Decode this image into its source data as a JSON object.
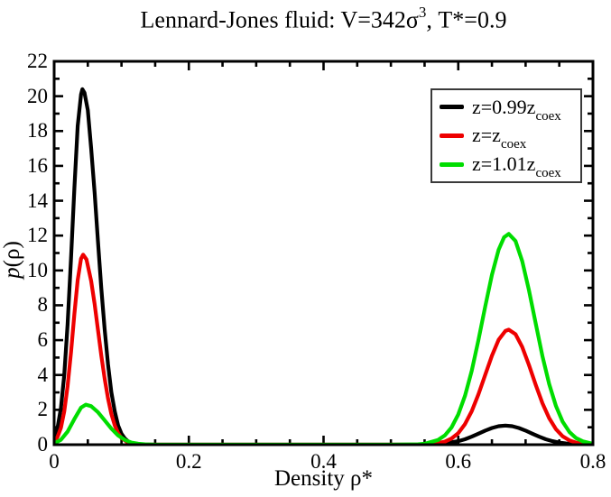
{
  "title": {
    "full": "Lennard-Jones fluid: V=342σ³, T*=0.9",
    "parts": {
      "before": "Lennard-Jones fluid: V=342σ",
      "sup": "3",
      "after": ", T*=0.9"
    }
  },
  "axes": {
    "ylabel_parts": {
      "italic": "p",
      "rest": "(ρ)"
    },
    "xlabel": "Density ρ*"
  },
  "legend": {
    "position": "top-right",
    "entries": [
      {
        "prefix": "z=0.99z",
        "subscript": "coex",
        "full": "z=0.99z_coex",
        "color": "#000000"
      },
      {
        "prefix": "z=z",
        "subscript": "coex",
        "full": "z=z_coex",
        "color": "#ee0000"
      },
      {
        "prefix": "z=1.01z",
        "subscript": "coex",
        "full": "z=1.01z_coex",
        "color": "#00dd00"
      }
    ]
  },
  "chart_data": {
    "type": "line",
    "title": "Lennard-Jones fluid: V=342σ³, T*=0.9",
    "xlabel": "Density ρ*",
    "ylabel": "p(ρ)",
    "xlim": [
      0,
      0.8
    ],
    "ylim": [
      0,
      22
    ],
    "grid": false,
    "legend_position": "top-right",
    "x_major_ticks": [
      0,
      0.2,
      0.4,
      0.6,
      0.8
    ],
    "x_tick_labels": [
      "0",
      "0.2",
      "0.4",
      "0.6",
      "0.8"
    ],
    "x_minor_step": 0.05,
    "y_major_ticks": [
      0,
      2,
      4,
      6,
      8,
      10,
      12,
      14,
      16,
      18,
      20,
      22
    ],
    "y_tick_labels": [
      "0",
      "2",
      "4",
      "6",
      "8",
      "10",
      "12",
      "14",
      "16",
      "18",
      "20",
      "22"
    ],
    "y_minor_step": 1,
    "series": [
      {
        "name": "z=0.99z_coex",
        "color": "#000000",
        "left_peak": {
          "x": 0.042,
          "y": 20.4
        },
        "right_peak": {
          "x": 0.67,
          "y": 1.1
        },
        "points": [
          [
            0,
            0.4
          ],
          [
            0.005,
            0.95
          ],
          [
            0.01,
            2.1
          ],
          [
            0.015,
            4.0
          ],
          [
            0.02,
            6.9
          ],
          [
            0.025,
            10.7
          ],
          [
            0.03,
            14.7
          ],
          [
            0.035,
            18.3
          ],
          [
            0.04,
            20.1
          ],
          [
            0.042,
            20.4
          ],
          [
            0.045,
            20.2
          ],
          [
            0.05,
            19.2
          ],
          [
            0.055,
            17.0
          ],
          [
            0.06,
            14.5
          ],
          [
            0.065,
            11.7
          ],
          [
            0.07,
            9.0
          ],
          [
            0.075,
            6.6
          ],
          [
            0.08,
            4.6
          ],
          [
            0.085,
            3.0
          ],
          [
            0.09,
            1.9
          ],
          [
            0.095,
            1.1
          ],
          [
            0.1,
            0.63
          ],
          [
            0.105,
            0.35
          ],
          [
            0.11,
            0.18
          ],
          [
            0.115,
            0.09
          ],
          [
            0.12,
            0.05
          ],
          [
            0.13,
            0.01
          ],
          [
            0.14,
            0
          ],
          [
            0.2,
            0
          ],
          [
            0.3,
            0
          ],
          [
            0.4,
            0
          ],
          [
            0.5,
            0
          ],
          [
            0.54,
            0
          ],
          [
            0.56,
            0.03
          ],
          [
            0.58,
            0.07
          ],
          [
            0.6,
            0.2
          ],
          [
            0.61,
            0.31
          ],
          [
            0.62,
            0.46
          ],
          [
            0.63,
            0.63
          ],
          [
            0.64,
            0.81
          ],
          [
            0.65,
            0.96
          ],
          [
            0.66,
            1.06
          ],
          [
            0.67,
            1.1
          ],
          [
            0.68,
            1.06
          ],
          [
            0.69,
            0.96
          ],
          [
            0.7,
            0.81
          ],
          [
            0.71,
            0.63
          ],
          [
            0.72,
            0.46
          ],
          [
            0.73,
            0.31
          ],
          [
            0.74,
            0.2
          ],
          [
            0.75,
            0.12
          ],
          [
            0.76,
            0.07
          ],
          [
            0.77,
            0.04
          ],
          [
            0.78,
            0.02
          ],
          [
            0.8,
            0
          ]
        ]
      },
      {
        "name": "z=z_coex",
        "color": "#ee0000",
        "left_peak": {
          "x": 0.043,
          "y": 10.9
        },
        "right_peak": {
          "x": 0.675,
          "y": 6.6
        },
        "points": [
          [
            0,
            0.18
          ],
          [
            0.005,
            0.44
          ],
          [
            0.01,
            0.97
          ],
          [
            0.015,
            1.91
          ],
          [
            0.02,
            3.36
          ],
          [
            0.025,
            5.31
          ],
          [
            0.03,
            7.49
          ],
          [
            0.035,
            9.45
          ],
          [
            0.04,
            10.68
          ],
          [
            0.043,
            10.9
          ],
          [
            0.048,
            10.63
          ],
          [
            0.055,
            9.39
          ],
          [
            0.06,
            8.09
          ],
          [
            0.065,
            6.61
          ],
          [
            0.07,
            5.13
          ],
          [
            0.075,
            3.78
          ],
          [
            0.08,
            2.65
          ],
          [
            0.085,
            1.76
          ],
          [
            0.09,
            1.11
          ],
          [
            0.095,
            0.67
          ],
          [
            0.1,
            0.38
          ],
          [
            0.11,
            0.11
          ],
          [
            0.12,
            0.03
          ],
          [
            0.13,
            0.01
          ],
          [
            0.14,
            0
          ],
          [
            0.2,
            0
          ],
          [
            0.3,
            0
          ],
          [
            0.4,
            0
          ],
          [
            0.5,
            0
          ],
          [
            0.55,
            0
          ],
          [
            0.56,
            0.03
          ],
          [
            0.58,
            0.17
          ],
          [
            0.59,
            0.35
          ],
          [
            0.6,
            0.66
          ],
          [
            0.61,
            1.18
          ],
          [
            0.62,
            1.92
          ],
          [
            0.63,
            2.89
          ],
          [
            0.64,
            4.0
          ],
          [
            0.65,
            5.11
          ],
          [
            0.66,
            6.02
          ],
          [
            0.67,
            6.53
          ],
          [
            0.675,
            6.6
          ],
          [
            0.685,
            6.34
          ],
          [
            0.695,
            5.61
          ],
          [
            0.705,
            4.57
          ],
          [
            0.715,
            3.43
          ],
          [
            0.725,
            2.38
          ],
          [
            0.735,
            1.52
          ],
          [
            0.745,
            0.89
          ],
          [
            0.755,
            0.48
          ],
          [
            0.765,
            0.25
          ],
          [
            0.775,
            0.12
          ],
          [
            0.785,
            0.05
          ],
          [
            0.8,
            0.01
          ]
        ]
      },
      {
        "name": "z=1.01z_coex",
        "color": "#00dd00",
        "left_peak": {
          "x": 0.047,
          "y": 2.3
        },
        "right_peak": {
          "x": 0.675,
          "y": 12.1
        },
        "points": [
          [
            0,
            0.08
          ],
          [
            0.01,
            0.28
          ],
          [
            0.02,
            0.75
          ],
          [
            0.03,
            1.47
          ],
          [
            0.04,
            2.13
          ],
          [
            0.047,
            2.3
          ],
          [
            0.055,
            2.21
          ],
          [
            0.065,
            1.87
          ],
          [
            0.075,
            1.39
          ],
          [
            0.085,
            0.92
          ],
          [
            0.095,
            0.53
          ],
          [
            0.105,
            0.27
          ],
          [
            0.115,
            0.12
          ],
          [
            0.125,
            0.05
          ],
          [
            0.135,
            0.02
          ],
          [
            0.15,
            0
          ],
          [
            0.2,
            0
          ],
          [
            0.3,
            0
          ],
          [
            0.4,
            0
          ],
          [
            0.5,
            0
          ],
          [
            0.54,
            0.02
          ],
          [
            0.55,
            0.05
          ],
          [
            0.57,
            0.27
          ],
          [
            0.58,
            0.53
          ],
          [
            0.59,
            0.99
          ],
          [
            0.6,
            1.73
          ],
          [
            0.61,
            2.8
          ],
          [
            0.62,
            4.24
          ],
          [
            0.63,
            6.0
          ],
          [
            0.64,
            7.92
          ],
          [
            0.65,
            9.75
          ],
          [
            0.66,
            11.19
          ],
          [
            0.668,
            11.9
          ],
          [
            0.675,
            12.1
          ],
          [
            0.685,
            11.69
          ],
          [
            0.695,
            10.54
          ],
          [
            0.705,
            8.86
          ],
          [
            0.715,
            6.95
          ],
          [
            0.725,
            5.09
          ],
          [
            0.735,
            3.48
          ],
          [
            0.745,
            2.22
          ],
          [
            0.755,
            1.32
          ],
          [
            0.765,
            0.73
          ],
          [
            0.775,
            0.38
          ],
          [
            0.785,
            0.19
          ],
          [
            0.8,
            0.05
          ]
        ]
      }
    ]
  }
}
